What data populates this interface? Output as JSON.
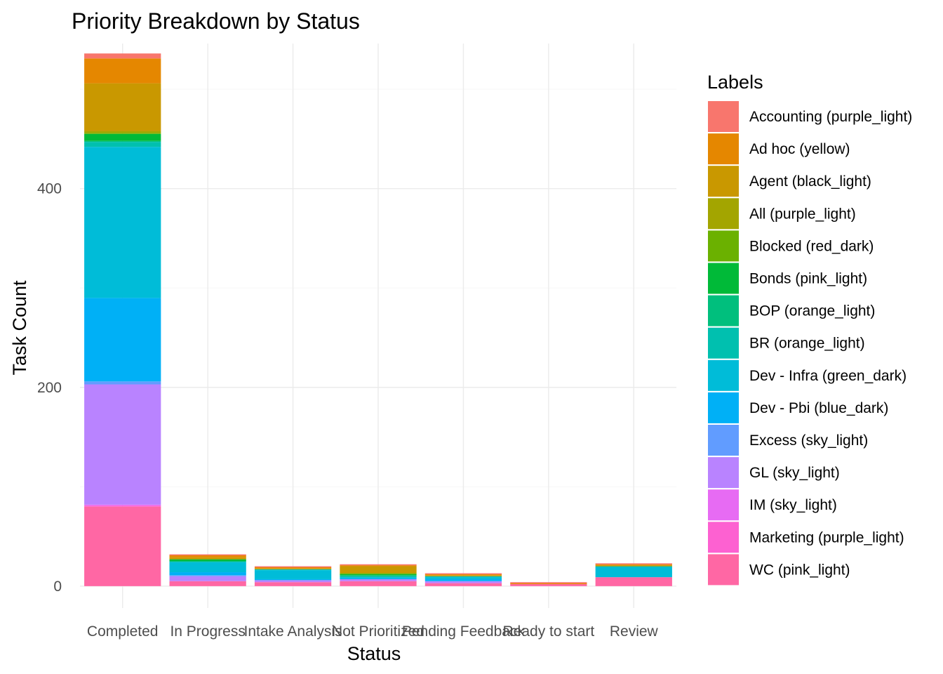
{
  "chart_data": {
    "type": "bar",
    "stacked": true,
    "title": "Priority Breakdown by Status",
    "xlabel": "Status",
    "ylabel": "Task Count",
    "categories": [
      "Completed",
      "In Progress",
      "Intake Analysis",
      "Not Prioritized",
      "Pending Feedback",
      "Ready to start",
      "Review"
    ],
    "y_ticks": [
      0,
      200,
      400
    ],
    "ylim": [
      -22,
      546
    ],
    "grid": true,
    "legend_title": "Labels",
    "legend_position": "right",
    "series": [
      {
        "name": "Accounting (purple_light)",
        "color": "#F8766D",
        "values": [
          5,
          1,
          1,
          1,
          1,
          1,
          1
        ]
      },
      {
        "name": "Ad hoc (yellow)",
        "color": "#E58700",
        "values": [
          25,
          2,
          1,
          1,
          1,
          1,
          1
        ]
      },
      {
        "name": "Agent (black_light)",
        "color": "#C99800",
        "values": [
          48,
          2,
          1,
          7,
          1,
          0,
          1
        ]
      },
      {
        "name": "All (purple_light)",
        "color": "#A3A500",
        "values": [
          2,
          0,
          0,
          0,
          0,
          0,
          0
        ]
      },
      {
        "name": "Blocked (red_dark)",
        "color": "#6BB100",
        "values": [
          1,
          0,
          0,
          1,
          0,
          0,
          0
        ]
      },
      {
        "name": "Bonds (pink_light)",
        "color": "#00BA38",
        "values": [
          7,
          2,
          0,
          1,
          0,
          0,
          0
        ]
      },
      {
        "name": "BOP (orange_light)",
        "color": "#00BF7D",
        "values": [
          1,
          0,
          0,
          1,
          0,
          0,
          0
        ]
      },
      {
        "name": "BR (orange_light)",
        "color": "#00C0AF",
        "values": [
          5,
          1,
          1,
          1,
          1,
          0,
          1
        ]
      },
      {
        "name": "Dev - Infra (green_dark)",
        "color": "#00BCD8",
        "values": [
          152,
          10,
          9,
          1,
          2,
          0,
          10
        ]
      },
      {
        "name": "Dev - Pbi (blue_dark)",
        "color": "#00B0F6",
        "values": [
          84,
          3,
          1,
          1,
          2,
          0,
          0
        ]
      },
      {
        "name": "Excess (sky_light)",
        "color": "#619CFF",
        "values": [
          3,
          1,
          0,
          0,
          0,
          0,
          0
        ]
      },
      {
        "name": "GL (sky_light)",
        "color": "#B983FF",
        "values": [
          121,
          5,
          2,
          2,
          2,
          0,
          0
        ]
      },
      {
        "name": "IM (sky_light)",
        "color": "#E76BF3",
        "values": [
          1,
          0,
          0,
          0,
          0,
          0,
          0
        ]
      },
      {
        "name": "Marketing (purple_light)",
        "color": "#FD61D1",
        "values": [
          1,
          0,
          0,
          0,
          0,
          0,
          0
        ]
      },
      {
        "name": "WC (pink_light)",
        "color": "#FF67A4",
        "values": [
          80,
          5,
          4,
          5,
          3,
          2,
          9
        ]
      }
    ]
  }
}
